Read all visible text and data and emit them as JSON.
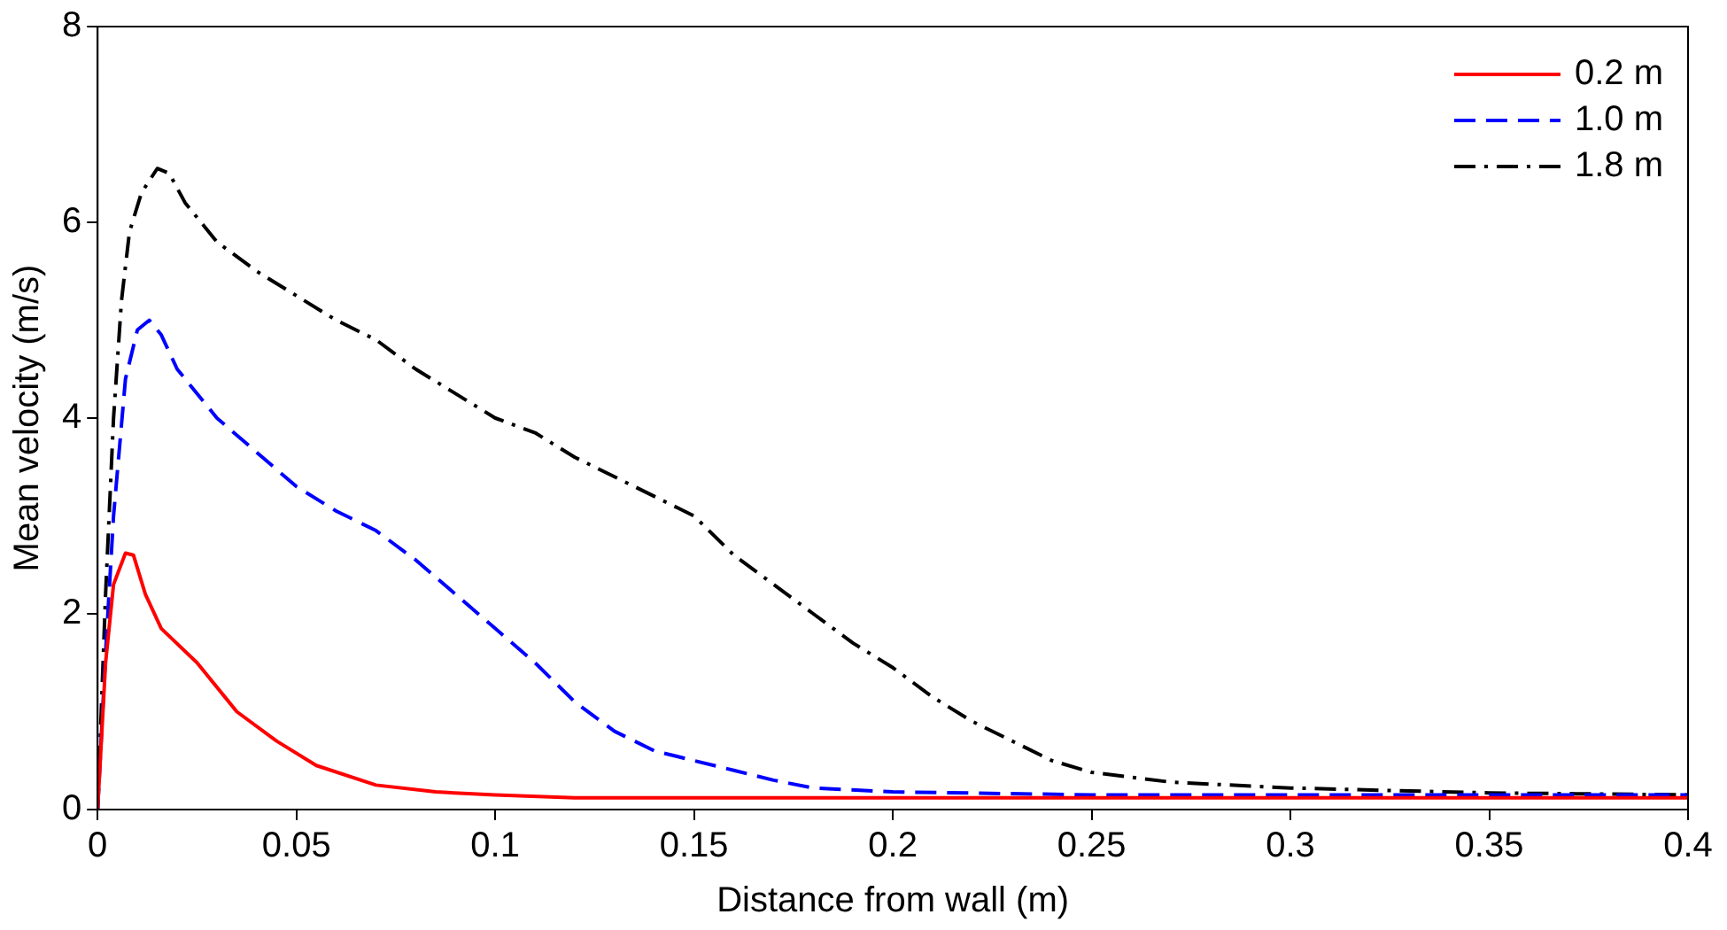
{
  "chart_data": {
    "type": "line",
    "xlabel": "Distance from wall (m)",
    "ylabel": "Mean velocity (m/s)",
    "xlim": [
      0,
      0.4
    ],
    "xticks": [
      0,
      0.05,
      0.1,
      0.15,
      0.2,
      0.25,
      0.3,
      0.35,
      0.4
    ],
    "ylim": [
      0,
      8
    ],
    "yticks": [
      0,
      2,
      4,
      6,
      8
    ],
    "grid": false,
    "legend": "top right",
    "marker": "none",
    "series": [
      {
        "name": "0.2 m",
        "color": "#ff0000",
        "line_style": "solid",
        "x": [
          0,
          0.002,
          0.004,
          0.007,
          0.009,
          0.012,
          0.016,
          0.025,
          0.035,
          0.045,
          0.055,
          0.07,
          0.085,
          0.1,
          0.12,
          0.15,
          0.2,
          0.3,
          0.4
        ],
        "values": [
          0,
          1.5,
          2.3,
          2.62,
          2.6,
          2.2,
          1.85,
          1.5,
          1.0,
          0.7,
          0.45,
          0.25,
          0.18,
          0.15,
          0.12,
          0.12,
          0.12,
          0.12,
          0.12
        ]
      },
      {
        "name": "1.0 m",
        "color": "#0000ff",
        "line_style": "dashed",
        "x": [
          0,
          0.002,
          0.004,
          0.007,
          0.01,
          0.013,
          0.016,
          0.02,
          0.03,
          0.04,
          0.05,
          0.06,
          0.07,
          0.08,
          0.09,
          0.1,
          0.11,
          0.12,
          0.13,
          0.14,
          0.15,
          0.16,
          0.17,
          0.18,
          0.2,
          0.25,
          0.3,
          0.35,
          0.4
        ],
        "values": [
          0,
          1.6,
          3.0,
          4.4,
          4.9,
          5.0,
          4.85,
          4.5,
          4.0,
          3.65,
          3.3,
          3.05,
          2.85,
          2.55,
          2.2,
          1.85,
          1.5,
          1.1,
          0.8,
          0.6,
          0.5,
          0.4,
          0.3,
          0.22,
          0.18,
          0.15,
          0.15,
          0.15,
          0.15
        ]
      },
      {
        "name": "1.8 m",
        "color": "#000000",
        "line_style": "dashdot",
        "x": [
          0,
          0.002,
          0.004,
          0.006,
          0.008,
          0.011,
          0.015,
          0.018,
          0.022,
          0.03,
          0.04,
          0.05,
          0.06,
          0.07,
          0.08,
          0.09,
          0.1,
          0.11,
          0.12,
          0.13,
          0.14,
          0.15,
          0.16,
          0.17,
          0.18,
          0.19,
          0.2,
          0.21,
          0.22,
          0.23,
          0.24,
          0.25,
          0.27,
          0.3,
          0.35,
          0.4
        ],
        "values": [
          0,
          2.2,
          4.0,
          5.2,
          5.9,
          6.3,
          6.55,
          6.5,
          6.2,
          5.8,
          5.5,
          5.25,
          5.0,
          4.8,
          4.5,
          4.25,
          4.0,
          3.85,
          3.6,
          3.4,
          3.2,
          3.0,
          2.6,
          2.3,
          2.0,
          1.7,
          1.45,
          1.15,
          0.9,
          0.7,
          0.5,
          0.38,
          0.28,
          0.22,
          0.17,
          0.15
        ]
      }
    ]
  }
}
